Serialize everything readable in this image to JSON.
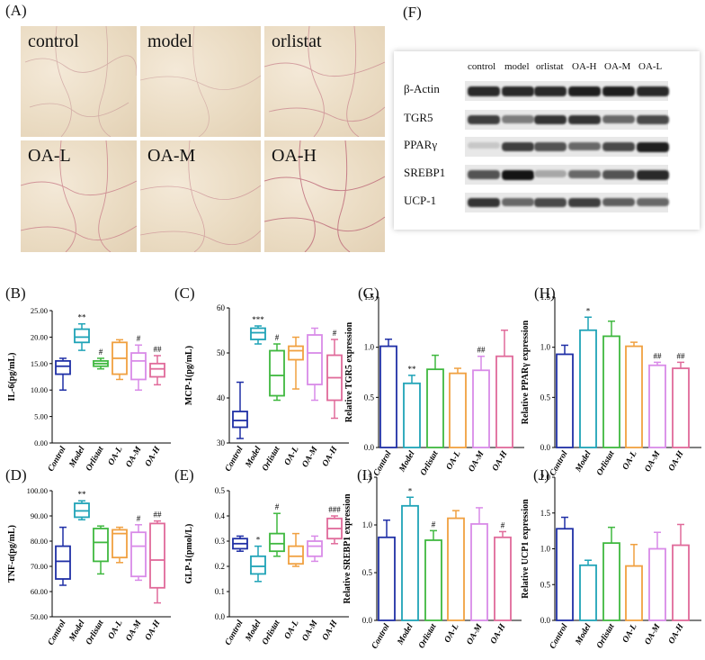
{
  "panel_labels": {
    "A": "(A)",
    "F": "(F)",
    "B": "(B)",
    "C": "(C)",
    "D": "(D)",
    "E": "(E)",
    "G": "(G)",
    "H": "(H)",
    "I": "(I)",
    "J": "(J)"
  },
  "histology": {
    "tiles": [
      "control",
      "model",
      "orlistat",
      "OA-L",
      "OA-M",
      "OA-H"
    ]
  },
  "western_blot": {
    "columns": [
      "control",
      "model",
      "orlistat",
      "OA-H",
      "OA-M",
      "OA-L"
    ],
    "rows": [
      {
        "label": "β-Actin",
        "intensity": [
          0.9,
          0.9,
          0.9,
          0.95,
          0.95,
          0.9
        ]
      },
      {
        "label": "TGR5",
        "intensity": [
          0.8,
          0.5,
          0.85,
          0.85,
          0.6,
          0.75
        ]
      },
      {
        "label": "PPARγ",
        "intensity": [
          0.15,
          0.8,
          0.7,
          0.6,
          0.75,
          0.95
        ]
      },
      {
        "label": "SREBP1",
        "intensity": [
          0.7,
          1.0,
          0.3,
          0.6,
          0.7,
          0.9
        ]
      },
      {
        "label": "UCP-1",
        "intensity": [
          0.85,
          0.6,
          0.75,
          0.8,
          0.65,
          0.6
        ]
      }
    ]
  },
  "chart_data": [
    {
      "id": "B",
      "type": "box",
      "ylabel": "IL-6(pg/mL)",
      "categories": [
        "Control",
        "Model",
        "Orlistat",
        "OA-L",
        "OA-M",
        "OA-H"
      ],
      "yticks": [
        "0.00",
        "5.00",
        "10.00",
        "15.00",
        "20.00",
        "25.00"
      ],
      "ylim": [
        0,
        25
      ],
      "colors": [
        "#1f2fa6",
        "#1fa3b7",
        "#3fb83f",
        "#f0a040",
        "#d98be8",
        "#e06a9a"
      ],
      "boxes": [
        {
          "min": 10.0,
          "q1": 13.0,
          "median": 14.5,
          "q3": 15.5,
          "max": 16.0
        },
        {
          "min": 17.5,
          "q1": 19.0,
          "median": 20.0,
          "q3": 21.5,
          "max": 22.5
        },
        {
          "min": 14.0,
          "q1": 14.5,
          "median": 15.0,
          "q3": 15.5,
          "max": 16.0
        },
        {
          "min": 12.0,
          "q1": 13.0,
          "median": 16.0,
          "q3": 19.0,
          "max": 19.5
        },
        {
          "min": 10.0,
          "q1": 12.0,
          "median": 15.5,
          "q3": 17.0,
          "max": 18.5
        },
        {
          "min": 11.0,
          "q1": 12.5,
          "median": 14.0,
          "q3": 15.0,
          "max": 16.5
        }
      ],
      "annotations": [
        "",
        "**",
        "#",
        "",
        "#",
        "##"
      ]
    },
    {
      "id": "C",
      "type": "box",
      "ylabel": "MCP-1(pg/mL)",
      "categories": [
        "Control",
        "Model",
        "Orlistat",
        "OA-L",
        "OA-M",
        "OA-H"
      ],
      "yticks": [
        "30",
        "40",
        "50",
        "60"
      ],
      "ylim": [
        30,
        60
      ],
      "colors": [
        "#1f2fa6",
        "#1fa3b7",
        "#3fb83f",
        "#f0a040",
        "#d98be8",
        "#e06a9a"
      ],
      "boxes": [
        {
          "min": 31.0,
          "q1": 33.5,
          "median": 35.0,
          "q3": 37.0,
          "max": 43.5
        },
        {
          "min": 52.0,
          "q1": 53.0,
          "median": 54.5,
          "q3": 55.5,
          "max": 56.0
        },
        {
          "min": 39.5,
          "q1": 40.5,
          "median": 45.0,
          "q3": 50.5,
          "max": 52.0
        },
        {
          "min": 42.0,
          "q1": 48.5,
          "median": 50.5,
          "q3": 51.5,
          "max": 53.5
        },
        {
          "min": 39.5,
          "q1": 43.0,
          "median": 50.0,
          "q3": 54.0,
          "max": 55.5
        },
        {
          "min": 35.5,
          "q1": 39.5,
          "median": 44.5,
          "q3": 49.5,
          "max": 53.0
        }
      ],
      "annotations": [
        "",
        "***",
        "#",
        "",
        "",
        "#"
      ]
    },
    {
      "id": "D",
      "type": "box",
      "ylabel": "TNF-α(pg/mL)",
      "categories": [
        "Control",
        "Model",
        "Orlistat",
        "OA-L",
        "OA-M",
        "OA-H"
      ],
      "yticks": [
        "50.00",
        "60.00",
        "70.00",
        "80.00",
        "90.00",
        "100.00"
      ],
      "ylim": [
        50,
        100
      ],
      "colors": [
        "#1f2fa6",
        "#1fa3b7",
        "#3fb83f",
        "#f0a040",
        "#d98be8",
        "#e06a9a"
      ],
      "boxes": [
        {
          "min": 62.5,
          "q1": 65.0,
          "median": 72.0,
          "q3": 78.0,
          "max": 85.5
        },
        {
          "min": 88.5,
          "q1": 89.5,
          "median": 92.0,
          "q3": 95.0,
          "max": 96.0
        },
        {
          "min": 67.0,
          "q1": 72.0,
          "median": 79.5,
          "q3": 85.0,
          "max": 86.0
        },
        {
          "min": 71.5,
          "q1": 73.5,
          "median": 83.0,
          "q3": 84.5,
          "max": 85.5
        },
        {
          "min": 64.5,
          "q1": 66.0,
          "median": 78.0,
          "q3": 83.5,
          "max": 86.5
        },
        {
          "min": 55.5,
          "q1": 61.5,
          "median": 72.5,
          "q3": 87.0,
          "max": 88.0
        }
      ],
      "annotations": [
        "",
        "**",
        "",
        "",
        "#",
        "##"
      ]
    },
    {
      "id": "E",
      "type": "box",
      "ylabel": "GLP-1(pmol/L)",
      "categories": [
        "Control",
        "Model",
        "Orlistat",
        "OA-L",
        "OA-M",
        "OA-H"
      ],
      "yticks": [
        "0.0",
        "0.1",
        "0.2",
        "0.3",
        "0.4",
        "0.5"
      ],
      "ylim": [
        0,
        0.5
      ],
      "colors": [
        "#1f2fa6",
        "#1fa3b7",
        "#3fb83f",
        "#f0a040",
        "#d98be8",
        "#e06a9a"
      ],
      "boxes": [
        {
          "min": 0.26,
          "q1": 0.27,
          "median": 0.29,
          "q3": 0.31,
          "max": 0.32
        },
        {
          "min": 0.14,
          "q1": 0.17,
          "median": 0.2,
          "q3": 0.24,
          "max": 0.28
        },
        {
          "min": 0.24,
          "q1": 0.26,
          "median": 0.29,
          "q3": 0.33,
          "max": 0.41
        },
        {
          "min": 0.2,
          "q1": 0.21,
          "median": 0.24,
          "q3": 0.28,
          "max": 0.33
        },
        {
          "min": 0.22,
          "q1": 0.24,
          "median": 0.28,
          "q3": 0.3,
          "max": 0.32
        },
        {
          "min": 0.29,
          "q1": 0.31,
          "median": 0.35,
          "q3": 0.39,
          "max": 0.4
        }
      ],
      "annotations": [
        "",
        "*",
        "#",
        "",
        "",
        "###"
      ]
    },
    {
      "id": "G",
      "type": "bar",
      "ylabel": "Relative TGR5 expression",
      "categories": [
        "Control",
        "Model",
        "Orlistat",
        "OA-L",
        "OA-M",
        "OA-H"
      ],
      "yticks": [
        "0.0",
        "0.5",
        "1.0",
        "1.5"
      ],
      "ylim": [
        0,
        1.5
      ],
      "colors": [
        "#1f2fa6",
        "#1fa3b7",
        "#3fb83f",
        "#f0a040",
        "#d98be8",
        "#e06a9a"
      ],
      "values": [
        1.01,
        0.64,
        0.78,
        0.74,
        0.77,
        0.91
      ],
      "errors": [
        0.07,
        0.08,
        0.14,
        0.05,
        0.14,
        0.26
      ],
      "annotations": [
        "",
        "**",
        "",
        "",
        "##",
        ""
      ]
    },
    {
      "id": "H",
      "type": "bar",
      "ylabel": "Relative PPARγ expression",
      "categories": [
        "Control",
        "Model",
        "Orlistat",
        "OA-L",
        "OA-M",
        "OA-H"
      ],
      "yticks": [
        "0.0",
        "0.5",
        "1.0",
        "1.5"
      ],
      "ylim": [
        0,
        1.5
      ],
      "colors": [
        "#1f2fa6",
        "#1fa3b7",
        "#3fb83f",
        "#f0a040",
        "#d98be8",
        "#e06a9a"
      ],
      "values": [
        0.93,
        1.17,
        1.11,
        1.01,
        0.82,
        0.79
      ],
      "errors": [
        0.09,
        0.13,
        0.15,
        0.04,
        0.03,
        0.06
      ],
      "annotations": [
        "",
        "*",
        "",
        "",
        "##",
        "##"
      ]
    },
    {
      "id": "I",
      "type": "bar",
      "ylabel": "Relative SREBP1 expression",
      "categories": [
        "Control",
        "Model",
        "Orlistat",
        "OA-L",
        "OA-M",
        "OA-H"
      ],
      "yticks": [
        "0.0",
        "0.5",
        "1.0",
        "1.5"
      ],
      "ylim": [
        0,
        1.5
      ],
      "colors": [
        "#1f2fa6",
        "#1fa3b7",
        "#3fb83f",
        "#f0a040",
        "#d98be8",
        "#e06a9a"
      ],
      "values": [
        0.87,
        1.2,
        0.84,
        1.07,
        1.01,
        0.87
      ],
      "errors": [
        0.18,
        0.09,
        0.1,
        0.08,
        0.17,
        0.06
      ],
      "annotations": [
        "",
        "*",
        "#",
        "",
        "",
        "#"
      ]
    },
    {
      "id": "J",
      "type": "bar",
      "ylabel": "Relative UCP1 expression",
      "categories": [
        "Control",
        "Model",
        "Orlistat",
        "OA-L",
        "OA-M",
        "OA-H"
      ],
      "yticks": [
        "0.0",
        "0.5",
        "1.0",
        "1.5",
        "2.0"
      ],
      "ylim": [
        0,
        2.0
      ],
      "colors": [
        "#1f2fa6",
        "#1fa3b7",
        "#3fb83f",
        "#f0a040",
        "#d98be8",
        "#e06a9a"
      ],
      "values": [
        1.28,
        0.77,
        1.08,
        0.76,
        1.0,
        1.05
      ],
      "errors": [
        0.16,
        0.07,
        0.22,
        0.3,
        0.23,
        0.29
      ],
      "annotations": [
        "",
        "",
        "",
        "",
        "",
        ""
      ]
    }
  ]
}
